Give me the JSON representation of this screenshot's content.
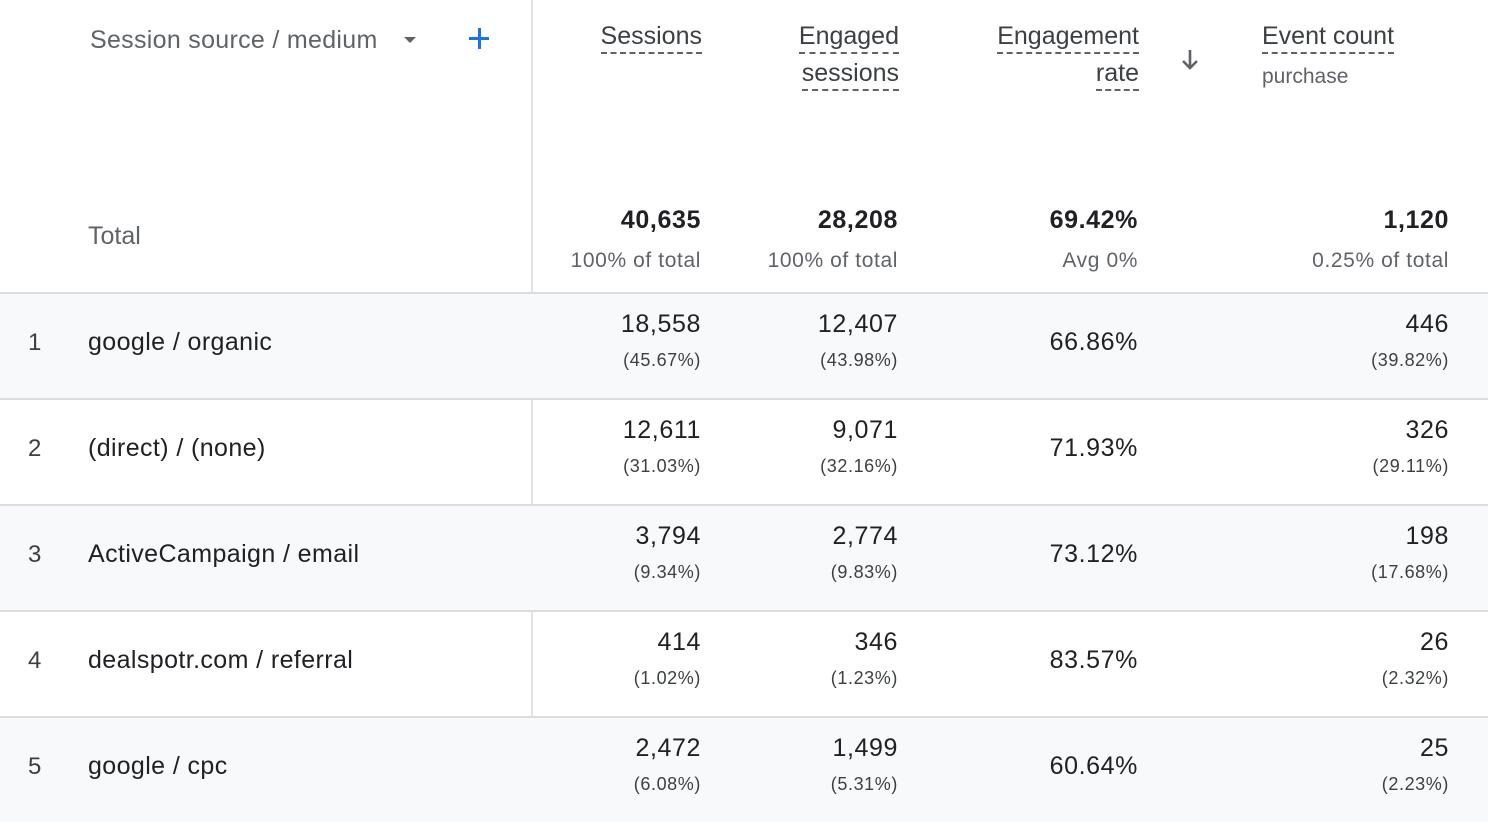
{
  "header": {
    "dimension_label": "Session source / medium",
    "metrics": {
      "sessions": "Sessions",
      "engaged_line1": "Engaged",
      "engaged_line2": "sessions",
      "rate_line1": "Engagement",
      "rate_line2": "rate",
      "event_count": "Event count",
      "event_filter": "purchase"
    },
    "sort_icon": "arrow-down-icon",
    "add_icon": "plus-icon",
    "dropdown_icon": "caret-down-icon"
  },
  "totals": {
    "label": "Total",
    "sessions": "40,635",
    "sessions_sub": "100% of total",
    "engaged": "28,208",
    "engaged_sub": "100% of total",
    "rate": "69.42%",
    "rate_sub": "Avg 0%",
    "event": "1,120",
    "event_sub": "0.25% of total"
  },
  "rows": [
    {
      "index": "1",
      "dimension": "google / organic",
      "sessions": "18,558",
      "sessions_pct": "(45.67%)",
      "engaged": "12,407",
      "engaged_pct": "(43.98%)",
      "rate": "66.86%",
      "event": "446",
      "event_pct": "(39.82%)"
    },
    {
      "index": "2",
      "dimension": "(direct) / (none)",
      "sessions": "12,611",
      "sessions_pct": "(31.03%)",
      "engaged": "9,071",
      "engaged_pct": "(32.16%)",
      "rate": "71.93%",
      "event": "326",
      "event_pct": "(29.11%)"
    },
    {
      "index": "3",
      "dimension": "ActiveCampaign / email",
      "sessions": "3,794",
      "sessions_pct": "(9.34%)",
      "engaged": "2,774",
      "engaged_pct": "(9.83%)",
      "rate": "73.12%",
      "event": "198",
      "event_pct": "(17.68%)"
    },
    {
      "index": "4",
      "dimension": "dealspotr.com / referral",
      "sessions": "414",
      "sessions_pct": "(1.02%)",
      "engaged": "346",
      "engaged_pct": "(1.23%)",
      "rate": "83.57%",
      "event": "26",
      "event_pct": "(2.32%)"
    },
    {
      "index": "5",
      "dimension": "google / cpc",
      "sessions": "2,472",
      "sessions_pct": "(6.08%)",
      "engaged": "1,499",
      "engaged_pct": "(5.31%)",
      "rate": "60.64%",
      "event": "25",
      "event_pct": "(2.23%)"
    }
  ],
  "colors": {
    "accent": "#1a73e8",
    "row_shade": "#f8f9fa",
    "divider": "#dadce0"
  }
}
